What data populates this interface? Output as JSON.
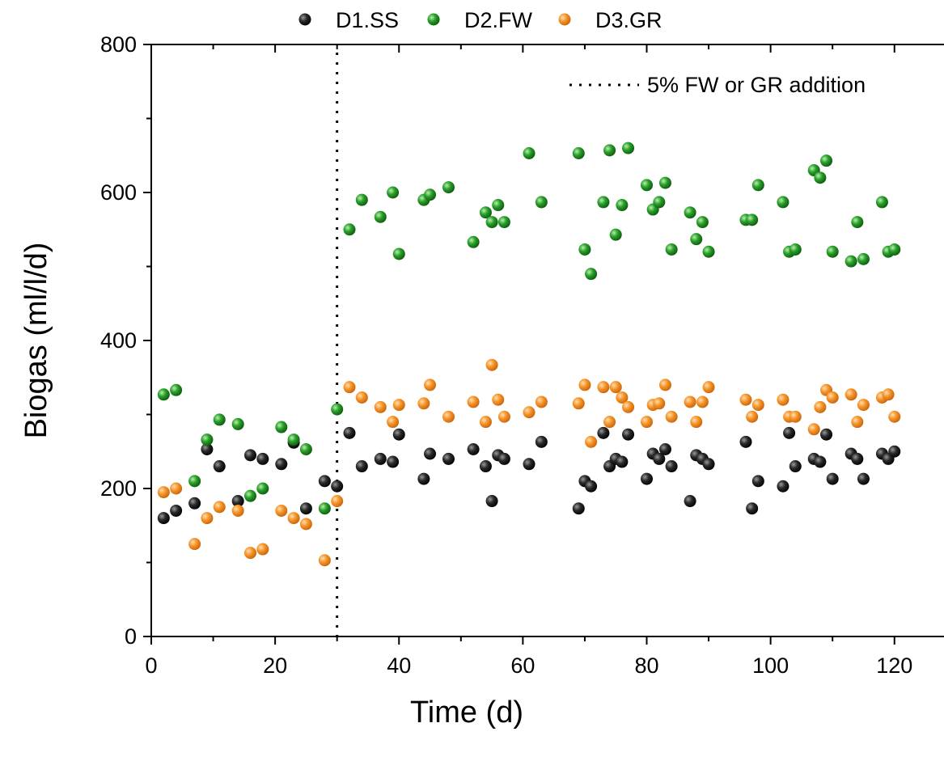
{
  "chart_data": {
    "type": "scatter",
    "xlabel": "Time (d)",
    "ylabel": "Biogas (ml/l/d)",
    "xlim": [
      0,
      128
    ],
    "ylim": [
      0,
      800
    ],
    "xticks": [
      "0",
      "20",
      "40",
      "60",
      "80",
      "100",
      "120"
    ],
    "yticks": [
      "0",
      "200",
      "400",
      "600",
      "800"
    ],
    "grid": false,
    "legend_position": "top",
    "reference_line": {
      "x": 30,
      "style": "dotted",
      "label": "5% FW or GR addition"
    },
    "series": [
      {
        "name": "D1.SS",
        "color": "#1a1a1a",
        "points": [
          [
            2,
            160
          ],
          [
            4,
            170
          ],
          [
            7,
            180
          ],
          [
            9,
            253
          ],
          [
            11,
            230
          ],
          [
            14,
            183
          ],
          [
            16,
            245
          ],
          [
            18,
            240
          ],
          [
            21,
            233
          ],
          [
            23,
            262
          ],
          [
            25,
            173
          ],
          [
            28,
            210
          ],
          [
            30,
            203
          ],
          [
            32,
            275
          ],
          [
            34,
            230
          ],
          [
            37,
            240
          ],
          [
            39,
            236
          ],
          [
            40,
            273
          ],
          [
            44,
            213
          ],
          [
            45,
            247
          ],
          [
            48,
            240
          ],
          [
            52,
            253
          ],
          [
            54,
            230
          ],
          [
            55,
            183
          ],
          [
            56,
            245
          ],
          [
            57,
            240
          ],
          [
            61,
            233
          ],
          [
            63,
            263
          ],
          [
            69,
            173
          ],
          [
            70,
            210
          ],
          [
            71,
            203
          ],
          [
            73,
            275
          ],
          [
            74,
            230
          ],
          [
            75,
            240
          ],
          [
            76,
            236
          ],
          [
            77,
            273
          ],
          [
            80,
            213
          ],
          [
            81,
            247
          ],
          [
            82,
            240
          ],
          [
            83,
            253
          ],
          [
            84,
            230
          ],
          [
            87,
            183
          ],
          [
            88,
            245
          ],
          [
            89,
            240
          ],
          [
            90,
            233
          ],
          [
            96,
            263
          ],
          [
            97,
            173
          ],
          [
            98,
            210
          ],
          [
            102,
            203
          ],
          [
            103,
            275
          ],
          [
            104,
            230
          ],
          [
            107,
            240
          ],
          [
            108,
            236
          ],
          [
            109,
            273
          ],
          [
            110,
            213
          ],
          [
            113,
            247
          ],
          [
            114,
            240
          ],
          [
            115,
            213
          ],
          [
            118,
            247
          ],
          [
            119,
            240
          ],
          [
            120,
            250
          ]
        ]
      },
      {
        "name": "D2.FW",
        "color": "#1a8a1a",
        "points": [
          [
            2,
            327
          ],
          [
            4,
            333
          ],
          [
            7,
            210
          ],
          [
            9,
            266
          ],
          [
            11,
            293
          ],
          [
            14,
            287
          ],
          [
            16,
            190
          ],
          [
            18,
            200
          ],
          [
            21,
            283
          ],
          [
            23,
            266
          ],
          [
            25,
            253
          ],
          [
            28,
            173
          ],
          [
            30,
            307
          ],
          [
            32,
            550
          ],
          [
            34,
            590
          ],
          [
            37,
            567
          ],
          [
            39,
            600
          ],
          [
            40,
            517
          ],
          [
            44,
            590
          ],
          [
            45,
            597
          ],
          [
            48,
            607
          ],
          [
            52,
            533
          ],
          [
            54,
            573
          ],
          [
            55,
            560
          ],
          [
            56,
            583
          ],
          [
            57,
            560
          ],
          [
            61,
            653
          ],
          [
            63,
            587
          ],
          [
            69,
            653
          ],
          [
            70,
            523
          ],
          [
            71,
            490
          ],
          [
            73,
            587
          ],
          [
            74,
            657
          ],
          [
            75,
            543
          ],
          [
            76,
            583
          ],
          [
            77,
            660
          ],
          [
            80,
            610
          ],
          [
            81,
            577
          ],
          [
            82,
            587
          ],
          [
            83,
            613
          ],
          [
            84,
            523
          ],
          [
            87,
            573
          ],
          [
            88,
            537
          ],
          [
            89,
            560
          ],
          [
            90,
            520
          ],
          [
            96,
            563
          ],
          [
            97,
            563
          ],
          [
            98,
            610
          ],
          [
            102,
            587
          ],
          [
            103,
            520
          ],
          [
            104,
            523
          ],
          [
            107,
            630
          ],
          [
            108,
            620
          ],
          [
            109,
            643
          ],
          [
            110,
            520
          ],
          [
            113,
            507
          ],
          [
            114,
            560
          ],
          [
            115,
            510
          ],
          [
            118,
            587
          ],
          [
            119,
            520
          ],
          [
            120,
            523
          ]
        ]
      },
      {
        "name": "D3.GR",
        "color": "#f28a1c",
        "points": [
          [
            2,
            195
          ],
          [
            4,
            200
          ],
          [
            7,
            125
          ],
          [
            9,
            160
          ],
          [
            11,
            175
          ],
          [
            14,
            170
          ],
          [
            16,
            113
          ],
          [
            18,
            118
          ],
          [
            21,
            170
          ],
          [
            23,
            160
          ],
          [
            25,
            152
          ],
          [
            28,
            103
          ],
          [
            30,
            183
          ],
          [
            32,
            337
          ],
          [
            34,
            323
          ],
          [
            37,
            310
          ],
          [
            39,
            290
          ],
          [
            40,
            313
          ],
          [
            44,
            315
          ],
          [
            45,
            340
          ],
          [
            48,
            297
          ],
          [
            52,
            317
          ],
          [
            54,
            290
          ],
          [
            55,
            367
          ],
          [
            56,
            320
          ],
          [
            57,
            297
          ],
          [
            61,
            303
          ],
          [
            63,
            317
          ],
          [
            69,
            315
          ],
          [
            70,
            340
          ],
          [
            71,
            263
          ],
          [
            73,
            337
          ],
          [
            74,
            290
          ],
          [
            75,
            337
          ],
          [
            76,
            323
          ],
          [
            77,
            310
          ],
          [
            80,
            290
          ],
          [
            81,
            313
          ],
          [
            82,
            315
          ],
          [
            83,
            340
          ],
          [
            84,
            297
          ],
          [
            87,
            317
          ],
          [
            88,
            290
          ],
          [
            89,
            317
          ],
          [
            90,
            337
          ],
          [
            96,
            320
          ],
          [
            97,
            297
          ],
          [
            98,
            313
          ],
          [
            102,
            320
          ],
          [
            103,
            297
          ],
          [
            104,
            297
          ],
          [
            107,
            280
          ],
          [
            108,
            310
          ],
          [
            109,
            333
          ],
          [
            110,
            323
          ],
          [
            113,
            327
          ],
          [
            114,
            290
          ],
          [
            115,
            313
          ],
          [
            118,
            323
          ],
          [
            119,
            327
          ],
          [
            120,
            297
          ]
        ]
      }
    ]
  }
}
